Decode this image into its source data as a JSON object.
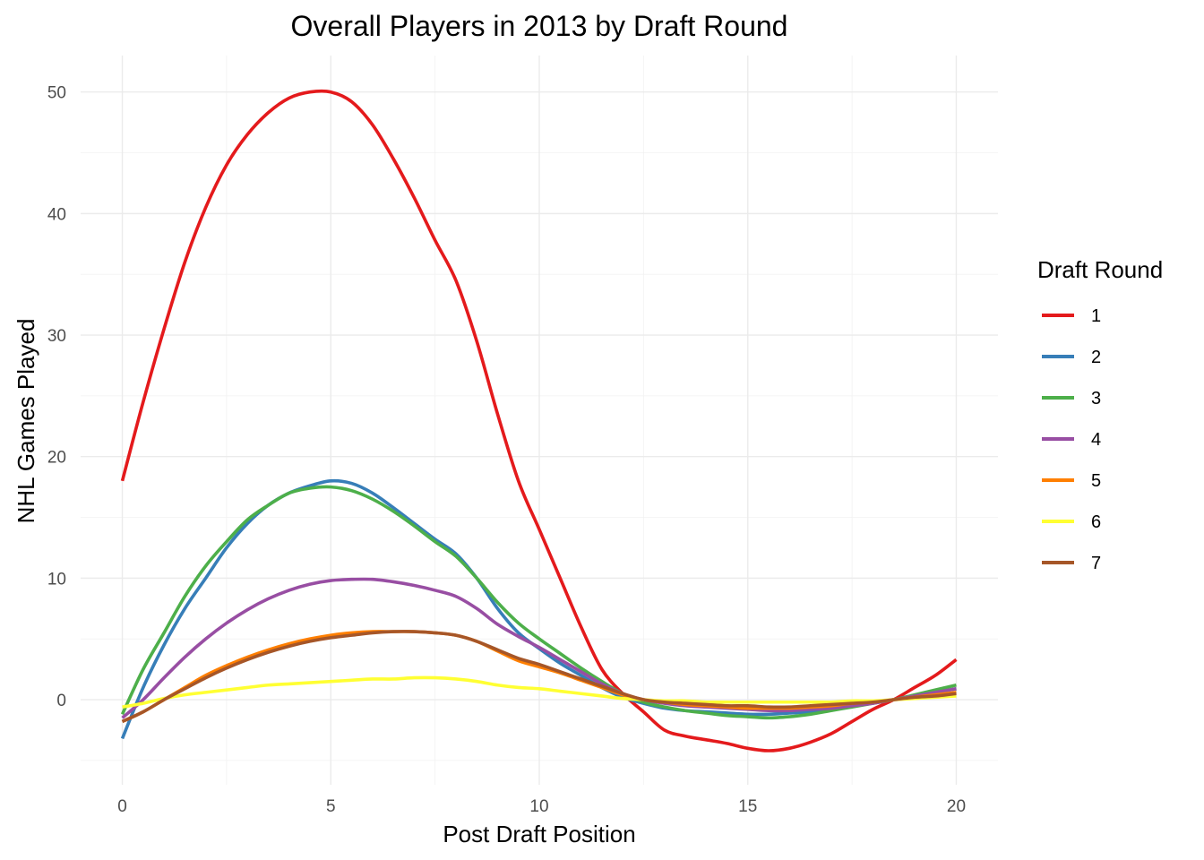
{
  "chart_data": {
    "type": "line",
    "title": "Overall Players in 2013 by Draft Round",
    "xlabel": "Post Draft Position",
    "ylabel": "NHL Games Played",
    "xlim": [
      -1,
      21
    ],
    "ylim": [
      -7,
      53
    ],
    "x_ticks": [
      0,
      5,
      10,
      15,
      20
    ],
    "y_ticks": [
      0,
      10,
      20,
      30,
      40,
      50
    ],
    "grid": true,
    "legend": {
      "title": "Draft Round",
      "position": "right"
    },
    "x": [
      0,
      0.5,
      1,
      1.5,
      2,
      2.5,
      3,
      3.5,
      4,
      4.5,
      5,
      5.5,
      6,
      6.5,
      7,
      7.5,
      8,
      8.5,
      9,
      9.5,
      10,
      10.5,
      11,
      11.5,
      12,
      12.5,
      13,
      13.5,
      14,
      14.5,
      15,
      15.5,
      16,
      16.5,
      17,
      17.5,
      18,
      18.5,
      19,
      19.5,
      20
    ],
    "series": [
      {
        "name": "1",
        "color": "#e41a1c",
        "values": [
          18,
          24.5,
          30.5,
          36,
          40.5,
          44,
          46.5,
          48.3,
          49.5,
          50,
          50,
          49.2,
          47.3,
          44.5,
          41.3,
          37.8,
          34.5,
          29.5,
          23.5,
          18,
          14,
          10,
          6,
          2.5,
          0.5,
          -1,
          -2.5,
          -3,
          -3.3,
          -3.6,
          -4,
          -4.2,
          -4,
          -3.5,
          -2.8,
          -1.8,
          -0.8,
          0,
          1,
          2,
          3.3
        ]
      },
      {
        "name": "2",
        "color": "#377eb8",
        "values": [
          -3.2,
          1,
          4.5,
          7.5,
          10,
          12.5,
          14.5,
          16,
          17,
          17.6,
          18,
          17.8,
          17,
          15.8,
          14.5,
          13.2,
          12,
          10,
          7.5,
          5.5,
          4.2,
          3,
          2,
          1,
          0.2,
          -0.3,
          -0.7,
          -0.9,
          -1,
          -1.1,
          -1.2,
          -1.2,
          -1.1,
          -1,
          -0.8,
          -0.5,
          -0.2,
          0,
          0.3,
          0.6,
          0.9
        ]
      },
      {
        "name": "3",
        "color": "#4daf4a",
        "values": [
          -1.2,
          2.5,
          5.5,
          8.5,
          11,
          13,
          14.8,
          16,
          17,
          17.4,
          17.5,
          17.2,
          16.5,
          15.5,
          14.3,
          13,
          11.8,
          10,
          8,
          6.3,
          5,
          3.8,
          2.6,
          1.5,
          0.5,
          -0.2,
          -0.6,
          -0.9,
          -1.1,
          -1.3,
          -1.4,
          -1.5,
          -1.4,
          -1.2,
          -0.9,
          -0.6,
          -0.3,
          0,
          0.4,
          0.8,
          1.2
        ]
      },
      {
        "name": "4",
        "color": "#984ea3",
        "values": [
          -1.5,
          0,
          1.8,
          3.5,
          5,
          6.3,
          7.4,
          8.3,
          9,
          9.5,
          9.8,
          9.9,
          9.9,
          9.7,
          9.4,
          9,
          8.5,
          7.5,
          6.2,
          5.2,
          4.3,
          3.3,
          2.3,
          1.3,
          0.5,
          0,
          -0.3,
          -0.5,
          -0.6,
          -0.7,
          -0.8,
          -0.9,
          -0.9,
          -0.8,
          -0.7,
          -0.5,
          -0.3,
          0,
          0.3,
          0.6,
          0.9
        ]
      },
      {
        "name": "5",
        "color": "#ff7f00",
        "values": [
          -1.8,
          -1,
          0,
          1,
          2,
          2.8,
          3.5,
          4.1,
          4.6,
          5,
          5.3,
          5.5,
          5.6,
          5.6,
          5.6,
          5.5,
          5.3,
          4.8,
          4,
          3.2,
          2.7,
          2.2,
          1.6,
          1,
          0.4,
          0,
          -0.2,
          -0.4,
          -0.5,
          -0.6,
          -0.7,
          -0.7,
          -0.7,
          -0.6,
          -0.5,
          -0.3,
          -0.2,
          0,
          0.2,
          0.4,
          0.6
        ]
      },
      {
        "name": "6",
        "color": "#ffff33",
        "values": [
          -0.6,
          -0.3,
          0.1,
          0.4,
          0.6,
          0.8,
          1,
          1.2,
          1.3,
          1.4,
          1.5,
          1.6,
          1.7,
          1.7,
          1.8,
          1.8,
          1.7,
          1.5,
          1.2,
          1,
          0.9,
          0.7,
          0.5,
          0.3,
          0.1,
          0,
          -0.1,
          -0.1,
          -0.2,
          -0.2,
          -0.2,
          -0.2,
          -0.2,
          -0.2,
          -0.2,
          -0.1,
          -0.1,
          0,
          0.1,
          0.2,
          0.3
        ]
      },
      {
        "name": "7",
        "color": "#a65628",
        "values": [
          -1.8,
          -1,
          0,
          0.9,
          1.8,
          2.6,
          3.3,
          3.9,
          4.4,
          4.8,
          5.1,
          5.3,
          5.5,
          5.6,
          5.6,
          5.5,
          5.3,
          4.8,
          4.1,
          3.4,
          2.9,
          2.3,
          1.7,
          1.1,
          0.5,
          0,
          -0.2,
          -0.3,
          -0.4,
          -0.5,
          -0.5,
          -0.6,
          -0.6,
          -0.5,
          -0.4,
          -0.3,
          -0.2,
          0,
          0.2,
          0.3,
          0.5
        ]
      }
    ]
  }
}
